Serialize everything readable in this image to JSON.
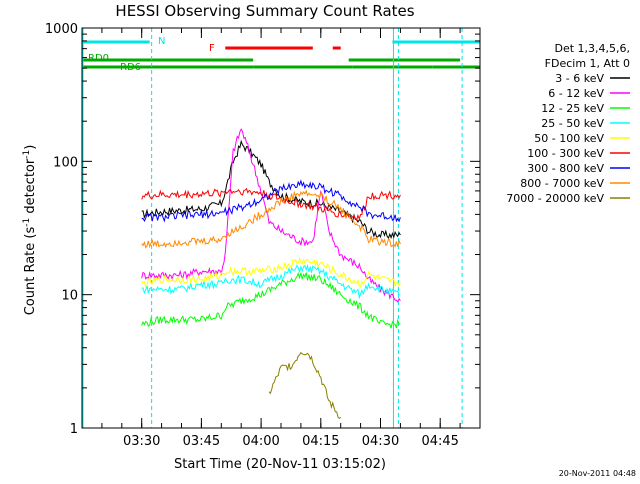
{
  "chart_data": {
    "type": "line",
    "title": "HESSI Observing Summary Count Rates",
    "xlabel": "Start Time (20-Nov-11 03:15:02)",
    "ylabel_main": "Count Rate (s",
    "ylabel_sup1": "-1",
    "ylabel_mid": " detector",
    "ylabel_sup2": "-1",
    "ylabel_end": ")",
    "y_scale": "log",
    "ylim": [
      1,
      1000
    ],
    "xlim_minutes": [
      0,
      100
    ],
    "x_ticks": [
      {
        "label": "03:30",
        "minute": 15
      },
      {
        "label": "03:45",
        "minute": 30
      },
      {
        "label": "04:00",
        "minute": 45
      },
      {
        "label": "04:15",
        "minute": 60
      },
      {
        "label": "04:30",
        "minute": 75
      },
      {
        "label": "04:45",
        "minute": 90
      }
    ],
    "y_ticks": [
      {
        "label": "1",
        "value": 1
      },
      {
        "label": "10",
        "value": 10
      },
      {
        "label": "100",
        "value": 100
      },
      {
        "label": "1000",
        "value": 1000
      }
    ],
    "legend_header": [
      "Det 1,3,4,5,6,",
      "FDecim 1, Att 0"
    ],
    "legend_placement": "right",
    "footer": "20-Nov-2011 04:48",
    "flags": [
      {
        "label": "N",
        "color": "#00e5e5",
        "segments": [
          [
            0,
            17
          ],
          [
            78,
            100
          ]
        ]
      },
      {
        "label": "F",
        "color": "#ff0000",
        "segments": [
          [
            36,
            58
          ],
          [
            63,
            65
          ]
        ]
      },
      {
        "label": "RD0",
        "color": "#00aa00",
        "segments": [
          [
            0,
            43
          ],
          [
            67,
            95
          ]
        ]
      },
      {
        "label": "RD6",
        "color": "#00aa00",
        "segments": [
          [
            0,
            43
          ],
          [
            43,
            68
          ],
          [
            68,
            88
          ],
          [
            88,
            100
          ]
        ]
      }
    ],
    "night_boundaries_minutes": [
      17.5,
      79.5,
      95.5
    ],
    "saa_lines_minutes": [
      0,
      78
    ],
    "series": [
      {
        "name": "3 - 6 keV",
        "color": "#000000",
        "x": [
          15,
          20,
          25,
          30,
          35,
          36,
          38,
          40,
          42,
          45,
          47,
          50,
          55,
          60,
          65,
          70,
          72,
          75,
          80
        ],
        "y": [
          40,
          42,
          43,
          44,
          48,
          60,
          100,
          135,
          120,
          95,
          70,
          55,
          50,
          48,
          42,
          35,
          30,
          28,
          28
        ]
      },
      {
        "name": "6 - 12 keV",
        "color": "#ff00ff",
        "x": [
          15,
          20,
          25,
          30,
          35,
          36,
          38,
          40,
          42,
          45,
          47,
          50,
          55,
          58,
          60,
          62,
          65,
          70,
          72,
          75,
          80
        ],
        "y": [
          14,
          14,
          14,
          15,
          15,
          20,
          120,
          175,
          120,
          60,
          35,
          30,
          25,
          25,
          60,
          30,
          20,
          16,
          13,
          11,
          9
        ]
      },
      {
        "name": "12 - 25 keV",
        "color": "#00ff00",
        "x": [
          15,
          20,
          25,
          30,
          35,
          36,
          40,
          45,
          50,
          55,
          60,
          65,
          70,
          72,
          75,
          80
        ],
        "y": [
          6,
          6.5,
          6.5,
          6.5,
          7,
          8,
          9,
          10,
          12,
          14,
          13,
          10,
          8,
          7,
          6,
          6
        ]
      },
      {
        "name": "25 - 50 keV",
        "color": "#00ffff",
        "x": [
          15,
          20,
          25,
          30,
          35,
          36,
          40,
          45,
          50,
          55,
          60,
          65,
          70,
          72,
          75,
          80
        ],
        "y": [
          11,
          11,
          11,
          12,
          12,
          13,
          13,
          12,
          14,
          16,
          15,
          12,
          10,
          12,
          11,
          10
        ]
      },
      {
        "name": "50 - 100 keV",
        "color": "#ffff00",
        "x": [
          15,
          20,
          25,
          30,
          35,
          36,
          40,
          45,
          50,
          55,
          60,
          65,
          70,
          72,
          75,
          80
        ],
        "y": [
          12,
          13,
          13,
          13,
          14,
          15,
          15,
          15,
          16,
          18,
          17,
          14,
          12,
          14,
          13,
          12
        ]
      },
      {
        "name": "100 - 300 keV",
        "color": "#ff0000",
        "x": [
          15,
          20,
          25,
          30,
          35,
          36,
          40,
          45,
          50,
          55,
          60,
          65,
          70,
          72,
          75,
          80
        ],
        "y": [
          55,
          56,
          56,
          57,
          58,
          60,
          60,
          58,
          52,
          48,
          44,
          40,
          38,
          55,
          56,
          56
        ]
      },
      {
        "name": "300 - 800 keV",
        "color": "#0000ff",
        "x": [
          15,
          20,
          25,
          30,
          35,
          36,
          40,
          45,
          50,
          55,
          60,
          65,
          70,
          72,
          75,
          80
        ],
        "y": [
          38,
          38,
          39,
          40,
          41,
          42,
          45,
          52,
          62,
          68,
          64,
          55,
          45,
          40,
          39,
          38
        ]
      },
      {
        "name": "800 - 7000 keV",
        "color": "#ff8800",
        "x": [
          15,
          20,
          25,
          30,
          35,
          36,
          40,
          45,
          50,
          55,
          60,
          65,
          70,
          72,
          75,
          80
        ],
        "y": [
          24,
          24,
          25,
          25,
          26,
          28,
          32,
          40,
          50,
          58,
          55,
          44,
          32,
          26,
          25,
          24
        ]
      },
      {
        "name": "7000 - 20000 keV",
        "color": "#8b8000",
        "x": [
          47,
          50,
          53,
          55,
          57,
          58,
          60,
          62,
          65
        ],
        "y": [
          1.8,
          2.8,
          3.0,
          3.8,
          3.6,
          3.2,
          2.4,
          1.6,
          1.2
        ]
      }
    ]
  }
}
